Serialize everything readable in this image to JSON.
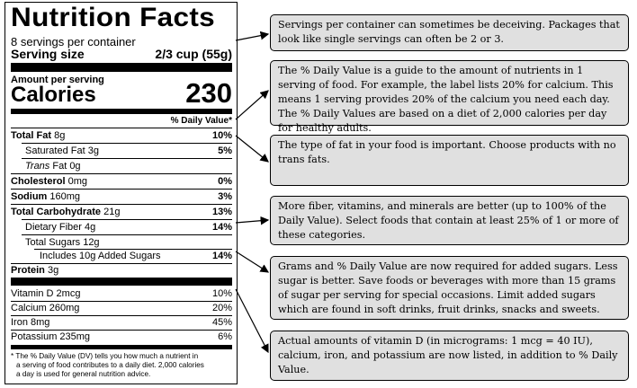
{
  "label": {
    "title": "Nutrition Facts",
    "servings": "8 servings per container",
    "serving_size_label": "Serving size",
    "serving_size_value": "2/3 cup (55g)",
    "amount_per_serving": "Amount per serving",
    "calories_label": "Calories",
    "calories_value": "230",
    "dv_header": "% Daily Value*",
    "rows": {
      "total_fat": {
        "name": "Total Fat",
        "amount": "8g",
        "dv": "10%"
      },
      "saturated_fat": {
        "name": "Saturated Fat 3g",
        "dv": "5%"
      },
      "trans_fat": {
        "name_italic": "Trans",
        "name_rest": " Fat 0g"
      },
      "cholesterol": {
        "name": "Cholesterol",
        "amount": "0mg",
        "dv": "0%"
      },
      "sodium": {
        "name": "Sodium",
        "amount": "160mg",
        "dv": "3%"
      },
      "total_carb": {
        "name": "Total Carbohydrate",
        "amount": "21g",
        "dv": "13%"
      },
      "fiber": {
        "name": "Dietary Fiber 4g",
        "dv": "14%"
      },
      "total_sugars": {
        "name": "Total Sugars 12g"
      },
      "added_sugars": {
        "name": "Includes 10g Added Sugars",
        "dv": "14%"
      },
      "protein": {
        "name": "Protein",
        "amount": "3g"
      },
      "vitamin_d": {
        "name": "Vitamin D 2mcg",
        "dv": "10%"
      },
      "calcium": {
        "name": "Calcium 260mg",
        "dv": "20%"
      },
      "iron": {
        "name": "Iron 8mg",
        "dv": "45%"
      },
      "potassium": {
        "name": "Potassium 235mg",
        "dv": "6%"
      }
    },
    "footnote_1": "* The % Daily Value (DV) tells you how much a nutrient in",
    "footnote_2": "a serving of food contributes to a daily diet. 2,000 calories",
    "footnote_3": "a day is used for general nutrition advice."
  },
  "callouts": [
    {
      "text": "Servings per container can sometimes be deceiving. Packages that look like single servings can often be 2 or 3."
    },
    {
      "text": "The % Daily Value is a guide to the amount of nutrients in 1 serving of food. For example, the label lists 20% for calcium. This means 1 serving provides 20% of the calcium you need each day. The % Daily Values are based on a diet of 2,000 calories per day for healthy adults."
    },
    {
      "text": "The type of fat in your food is important. Choose products with no trans fats."
    },
    {
      "text": "More fiber, vitamins, and minerals are better (up to 100% of the Daily Value). Select foods that contain at least 25% of 1 or more of these categories."
    },
    {
      "text": "Grams and % Daily Value are now required for added sugars. Less sugar is better. Save foods or beverages with more than 15 grams of sugar per serving for special occasions. Limit added sugars which are found in soft drinks, fruit drinks, snacks and sweets."
    },
    {
      "text": "Actual amounts of vitamin D (in micrograms: 1 mcg = 40 IU), calcium, iron, and potassium are now listed, in addition to % Daily Value."
    }
  ]
}
